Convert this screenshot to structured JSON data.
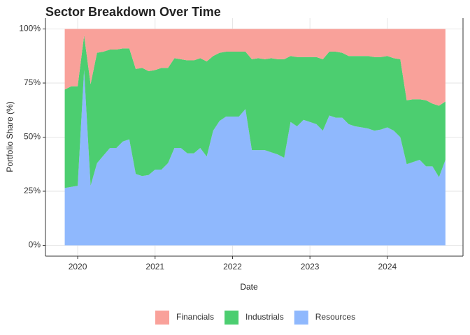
{
  "chart_data": {
    "type": "stacked_area",
    "title": "Sector Breakdown Over Time",
    "x_label": "Date",
    "y_label": "Portfolio Share (%)",
    "x": [
      2019.833,
      2019.917,
      2020,
      2020.083,
      2020.167,
      2020.25,
      2020.333,
      2020.417,
      2020.5,
      2020.583,
      2020.667,
      2020.75,
      2020.833,
      2020.917,
      2021,
      2021.083,
      2021.167,
      2021.25,
      2021.333,
      2021.417,
      2021.5,
      2021.583,
      2021.667,
      2021.75,
      2021.833,
      2021.917,
      2022,
      2022.083,
      2022.167,
      2022.25,
      2022.333,
      2022.417,
      2022.5,
      2022.583,
      2022.667,
      2022.75,
      2022.833,
      2022.917,
      2023,
      2023.083,
      2023.167,
      2023.25,
      2023.333,
      2023.417,
      2023.5,
      2023.583,
      2023.667,
      2023.75,
      2023.833,
      2023.917,
      2024,
      2024.083,
      2024.167,
      2024.25,
      2024.333,
      2024.417,
      2024.5,
      2024.583,
      2024.667,
      2024.75
    ],
    "series": [
      {
        "name": "Financials",
        "color": "#f9a19a",
        "values": [
          28,
          26.5,
          26.5,
          3,
          25.5,
          11,
          10.5,
          9.5,
          9.5,
          9,
          9,
          18.5,
          18,
          19.5,
          19,
          18,
          18,
          13.5,
          14,
          14.5,
          14.5,
          13.5,
          15,
          12.5,
          11,
          10.5,
          10.5,
          10.5,
          10.5,
          14,
          13.5,
          14,
          13.5,
          14,
          14,
          12.5,
          13,
          13,
          13,
          13,
          14,
          10.5,
          10.5,
          11,
          12.5,
          12.5,
          12.5,
          12.5,
          13,
          13,
          12.5,
          13.5,
          14,
          33,
          32.5,
          32.5,
          33,
          34.5,
          35.5,
          33.5
        ]
      },
      {
        "name": "Industrials",
        "color": "#4cce70",
        "values": [
          45.5,
          46.5,
          46,
          16,
          47,
          51,
          48,
          45.5,
          45.5,
          43,
          42,
          48.5,
          50,
          48,
          46,
          47,
          44,
          41.5,
          41,
          43,
          43,
          41.5,
          44,
          34.5,
          31.5,
          30,
          30,
          30,
          26.5,
          42,
          42.5,
          42,
          43.5,
          44,
          45.5,
          30.5,
          32,
          29,
          30,
          31,
          33,
          29.5,
          30.5,
          30,
          31.5,
          32.5,
          33,
          33.5,
          34,
          33.5,
          33,
          33.5,
          36,
          29.5,
          29,
          28,
          30.5,
          29,
          33,
          27
        ]
      },
      {
        "name": "Resources",
        "color": "#8fb8fd",
        "values": [
          26.5,
          27,
          27.5,
          81,
          27.5,
          38,
          41.5,
          45,
          45,
          48,
          49,
          33,
          32,
          32.5,
          35,
          35,
          38,
          45,
          45,
          42.5,
          42.5,
          45,
          41,
          53,
          57.5,
          59.5,
          59.5,
          59.5,
          63,
          44,
          44,
          44,
          43,
          42,
          40.5,
          57,
          55,
          58,
          57,
          56,
          53,
          60,
          59,
          59,
          56,
          55,
          54.5,
          54,
          53,
          53.5,
          54.5,
          53,
          50,
          37.5,
          38.5,
          39.5,
          36.5,
          36.5,
          31.5,
          39.5
        ]
      }
    ],
    "xlim": [
      2019.584,
      2024.977
    ],
    "xticks": [
      2020,
      2021,
      2022,
      2023,
      2024
    ],
    "ylim": [
      -5,
      105
    ],
    "yticks": [
      {
        "value": 0,
        "label": "0%"
      },
      {
        "value": 25,
        "label": "25%"
      },
      {
        "value": 50,
        "label": "50%"
      },
      {
        "value": 75,
        "label": "75%"
      },
      {
        "value": 100,
        "label": "100%"
      }
    ],
    "grid": true,
    "legend": "bottom"
  }
}
